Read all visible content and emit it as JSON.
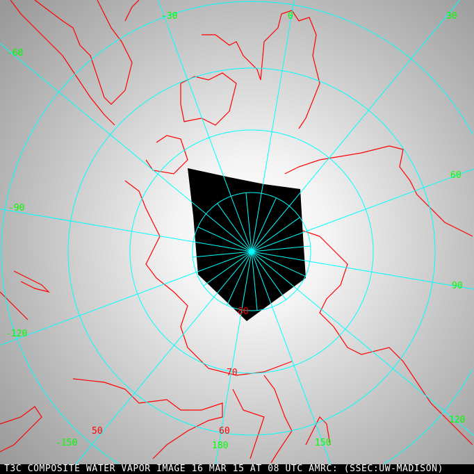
{
  "caption": "T3C COMPOSITE WATER VAPOR IMAGE 16 MAR 15 AT 08 UTC AMRC: (SSEC:UW-MADISON)",
  "colors": {
    "grid": "#00ffff",
    "coast": "#ff0000",
    "lon_label": "#00ff00",
    "lat_label": "#ff0000",
    "no_data": "#000000"
  },
  "longitude_labels": [
    "-30",
    "0",
    "30",
    "-60",
    "60",
    "-90",
    "90",
    "-120",
    "120",
    "150",
    "180",
    "-150"
  ],
  "latitude_labels": [
    "80",
    "70",
    "60",
    "50"
  ],
  "projection": "polar stereographic, north pole centered"
}
